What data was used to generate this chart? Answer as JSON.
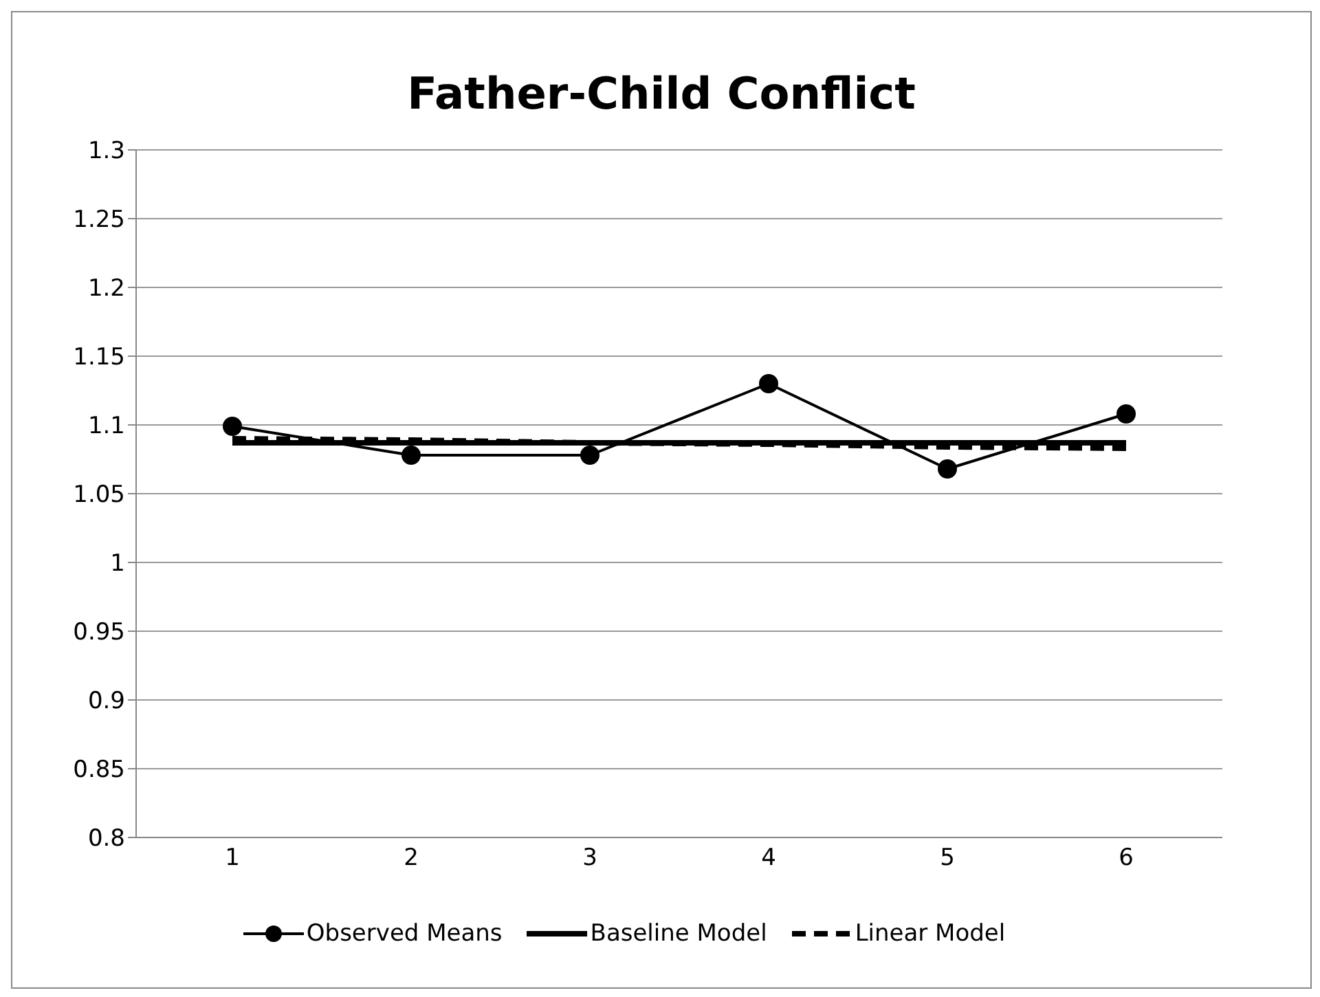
{
  "chart_data": {
    "type": "line",
    "title": "Father-Child Conflict",
    "categories": [
      "1",
      "2",
      "3",
      "4",
      "5",
      "6"
    ],
    "series": [
      {
        "name": "Observed Means",
        "color": "#000000",
        "values": [
          1.099,
          1.078,
          1.078,
          1.13,
          1.068,
          1.108
        ],
        "marker": "circle",
        "line_style": "solid"
      },
      {
        "name": "Baseline Model",
        "color": "#000000",
        "values": [
          1.087,
          1.087,
          1.087,
          1.087,
          1.087,
          1.087
        ],
        "marker": "none",
        "line_style": "solid"
      },
      {
        "name": "Linear Model",
        "color": "#000000",
        "values": [
          1.09,
          1.089,
          1.087,
          1.086,
          1.084,
          1.083
        ],
        "marker": "none",
        "line_style": "dashed"
      }
    ],
    "ylim": [
      0.8,
      1.3
    ],
    "yticks": [
      0.8,
      0.85,
      0.9,
      0.95,
      1,
      1.05,
      1.1,
      1.15,
      1.2,
      1.25,
      1.3
    ],
    "grid": "y",
    "legend": "bottom"
  }
}
